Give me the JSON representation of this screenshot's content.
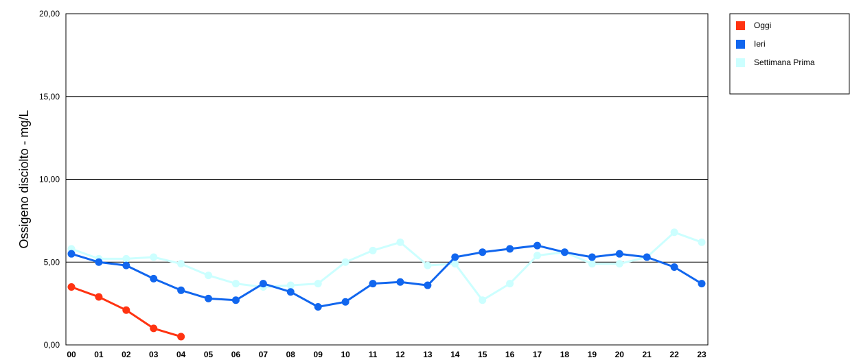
{
  "chart_data": {
    "type": "line",
    "ylabel": "Ossigeno disciolto - mg/L",
    "ylim": [
      0,
      20
    ],
    "yticks": [
      "0,00",
      "5,00",
      "10,00",
      "15,00",
      "20,00"
    ],
    "ytick_values": [
      0,
      5,
      10,
      15,
      20
    ],
    "categories": [
      "00",
      "01",
      "02",
      "03",
      "04",
      "05",
      "06",
      "07",
      "08",
      "09",
      "10",
      "11",
      "12",
      "13",
      "14",
      "15",
      "16",
      "17",
      "18",
      "19",
      "20",
      "21",
      "22",
      "23"
    ],
    "grid": true,
    "legend_position": "top-right",
    "series": [
      {
        "name": "Settimana Prima",
        "color": "#ccffff",
        "values": [
          5.8,
          5.2,
          5.2,
          5.3,
          4.9,
          4.2,
          3.7,
          3.5,
          3.6,
          3.7,
          5.0,
          5.7,
          6.2,
          4.8,
          4.9,
          2.7,
          3.7,
          5.4,
          5.6,
          4.9,
          4.9,
          5.3,
          6.8,
          6.2
        ]
      },
      {
        "name": "Ieri",
        "color": "#1166ee",
        "values": [
          5.5,
          5.0,
          4.8,
          4.0,
          3.3,
          2.8,
          2.7,
          3.7,
          3.2,
          2.3,
          2.6,
          3.7,
          3.8,
          3.6,
          5.3,
          5.6,
          5.8,
          6.0,
          5.6,
          5.3,
          5.5,
          5.3,
          4.7,
          3.7
        ]
      },
      {
        "name": "Oggi",
        "color": "#ff3311",
        "values": [
          3.5,
          2.9,
          2.1,
          1.0,
          0.5,
          null,
          null,
          null,
          null,
          null,
          null,
          null,
          null,
          null,
          null,
          null,
          null,
          null,
          null,
          null,
          null,
          null,
          null,
          null
        ]
      }
    ],
    "legend": [
      {
        "name": "Oggi",
        "color": "#ff3311"
      },
      {
        "name": "Ieri",
        "color": "#1166ee"
      },
      {
        "name": "Settimana Prima",
        "color": "#ccffff"
      }
    ]
  }
}
